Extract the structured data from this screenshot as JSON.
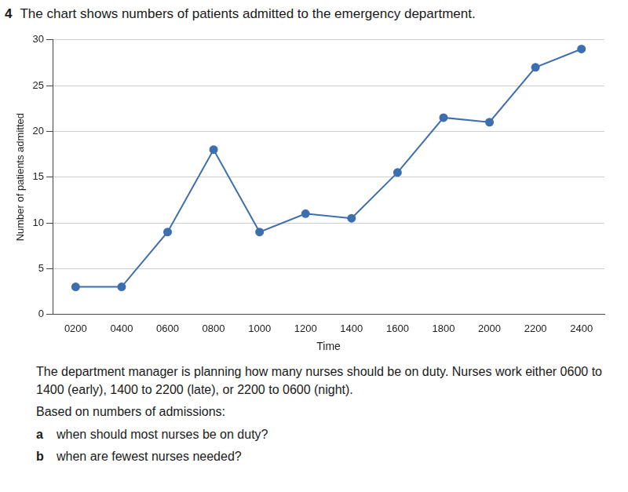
{
  "page": {
    "number": "4",
    "paragraphs": [
      "The department manager is planning how many nurses should be on duty. Nurses work either 0600 to 1400 (early), 1400 to 2200 (late), or 2200 to 0600 (night).",
      "Based on numbers of admissions:"
    ],
    "items": [
      {
        "label": "a",
        "text": "when should most nurses be on duty?"
      },
      {
        "label": "b",
        "text": "when are fewest nurses needed?"
      }
    ]
  },
  "chart_data": {
    "type": "line",
    "title": "The chart shows numbers of patients admitted to the emergency department.",
    "x_label": "Time",
    "y_label": "Number of patients admitted",
    "categories": [
      "0200",
      "0400",
      "0600",
      "0800",
      "1000",
      "1200",
      "1400",
      "1600",
      "1800",
      "2000",
      "2200",
      "2400"
    ],
    "values": [
      3,
      3,
      9,
      18,
      9,
      11,
      10.5,
      15.5,
      21.5,
      21,
      27,
      29
    ],
    "color": "#3d6fae",
    "marker": "circle",
    "line_style": "solid",
    "ylim": [
      0,
      30
    ],
    "yticks": [
      0,
      5,
      10,
      15,
      20,
      25,
      30
    ],
    "grid": true
  }
}
